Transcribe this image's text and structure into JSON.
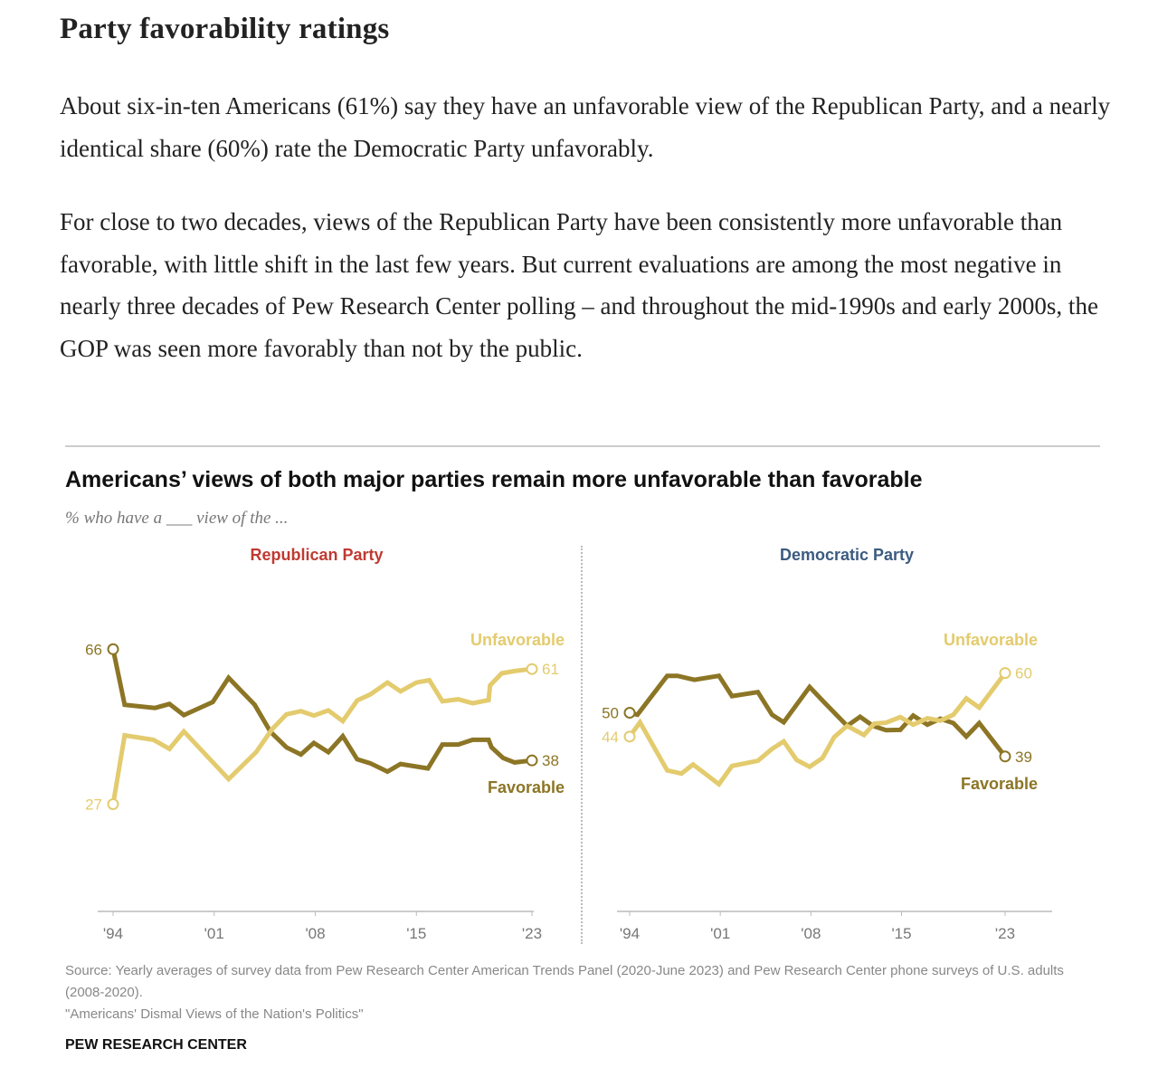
{
  "article": {
    "title": "Party favorability ratings",
    "paragraphs": [
      "About six-in-ten Americans (61%) say they have an unfavorable view of the Republican Party, and a nearly identical share (60%) rate the Democratic Party unfavorably.",
      "For close to two decades, views of the Republican Party have been consistently more unfavorable than favorable, with little shift in the last few years. But current evaluations are among the most negative in nearly three decades of Pew Research Center polling – and throughout the mid-1990s and early 2000s, the GOP was seen more favorably than not by the public."
    ]
  },
  "colors": {
    "favorable": "#8c7525",
    "unfavorable": "#e3cb6e",
    "republican": "#bf3a32",
    "democratic": "#3b5b80"
  },
  "chart_data": [
    {
      "type": "line",
      "title": "Americans’ views of both major parties remain more unfavorable than favorable",
      "subtitle": "% who have a ___ view of the ...",
      "panel": "Republican Party",
      "xlabel": "",
      "ylabel": "",
      "xlim": [
        1994,
        2023
      ],
      "ylim": [
        0,
        66
      ],
      "xticks": [
        1994,
        2001,
        2008,
        2015,
        2023
      ],
      "xtick_labels": [
        "'94",
        "'01",
        "'08",
        "'15",
        "'23"
      ],
      "grid": false,
      "series": [
        {
          "name": "Favorable",
          "start_label": "66",
          "end_label": "38",
          "points": [
            [
              1994,
              66
            ],
            [
              1994.8,
              52
            ],
            [
              1996.9,
              51.2
            ],
            [
              1997.9,
              52.2
            ],
            [
              1998.9,
              49.4
            ],
            [
              2000.9,
              52.7
            ],
            [
              2002,
              58.8
            ],
            [
              2003.8,
              52
            ],
            [
              2004.9,
              45.2
            ],
            [
              2006,
              41.3
            ],
            [
              2007,
              39.5
            ],
            [
              2007.9,
              42.4
            ],
            [
              2008.9,
              40.1
            ],
            [
              2009.9,
              44.1
            ],
            [
              2010.9,
              38.3
            ],
            [
              2011.8,
              37.3
            ],
            [
              2013,
              35.2
            ],
            [
              2013.9,
              37.1
            ],
            [
              2015.8,
              36
            ],
            [
              2016.8,
              42
            ],
            [
              2017.9,
              42
            ],
            [
              2018.9,
              43.2
            ],
            [
              2020,
              43.2
            ],
            [
              2020.2,
              41.3
            ],
            [
              2021,
              38.6
            ],
            [
              2021.8,
              37.5
            ],
            [
              2023,
              38
            ]
          ]
        },
        {
          "name": "Unfavorable",
          "start_label": "27",
          "end_label": "61",
          "points": [
            [
              1994,
              27
            ],
            [
              1994.8,
              44.3
            ],
            [
              1996.8,
              43.2
            ],
            [
              1997.9,
              40.9
            ],
            [
              1998.9,
              45.3
            ],
            [
              2002,
              33.3
            ],
            [
              2003.9,
              40.1
            ],
            [
              2005,
              45.8
            ],
            [
              2006,
              49.6
            ],
            [
              2007,
              50.4
            ],
            [
              2007.9,
              49.3
            ],
            [
              2008.9,
              50.6
            ],
            [
              2009.9,
              47.9
            ],
            [
              2010.9,
              53.1
            ],
            [
              2011.8,
              54.6
            ],
            [
              2013,
              57.6
            ],
            [
              2013.9,
              55.4
            ],
            [
              2015,
              57.6
            ],
            [
              2015.9,
              58.2
            ],
            [
              2016.8,
              52.9
            ],
            [
              2017.9,
              53.4
            ],
            [
              2018.9,
              52.4
            ],
            [
              2020,
              53.2
            ],
            [
              2020.1,
              56.9
            ],
            [
              2020.9,
              59.9
            ],
            [
              2021.8,
              60.5
            ],
            [
              2023,
              61
            ]
          ]
        }
      ]
    },
    {
      "type": "line",
      "panel": "Democratic Party",
      "xlabel": "",
      "ylabel": "",
      "xlim": [
        1994,
        2023
      ],
      "ylim": [
        0,
        66
      ],
      "xticks": [
        1994,
        2001,
        2008,
        2015,
        2023
      ],
      "xtick_labels": [
        "'94",
        "'01",
        "'08",
        "'15",
        "'23"
      ],
      "grid": false,
      "series": [
        {
          "name": "Favorable",
          "start_label": "50",
          "end_label": "39",
          "points": [
            [
              1994,
              50
            ],
            [
              1994.6,
              49.5
            ],
            [
              1996.9,
              59.3
            ],
            [
              1997.7,
              59.3
            ],
            [
              1999,
              58.3
            ],
            [
              2000.9,
              59.3
            ],
            [
              2001.9,
              54.2
            ],
            [
              2003.9,
              55.2
            ],
            [
              2005,
              49.5
            ],
            [
              2005.9,
              47.6
            ],
            [
              2007.9,
              56.5
            ],
            [
              2009,
              52.7
            ],
            [
              2010.8,
              46.7
            ],
            [
              2011.8,
              49
            ],
            [
              2012.8,
              46.7
            ],
            [
              2013.8,
              45.6
            ],
            [
              2014.9,
              45.7
            ],
            [
              2015.9,
              49.3
            ],
            [
              2017,
              47
            ],
            [
              2018,
              48.5
            ],
            [
              2019,
              47.4
            ],
            [
              2020,
              44
            ],
            [
              2021,
              47.4
            ],
            [
              2023,
              39
            ]
          ]
        },
        {
          "name": "Unfavorable",
          "start_label": "44",
          "end_label": "60",
          "points": [
            [
              1994,
              44
            ],
            [
              1994.8,
              47.6
            ],
            [
              1996.9,
              35.5
            ],
            [
              1998,
              34.7
            ],
            [
              1998.9,
              37
            ],
            [
              2000.9,
              32
            ],
            [
              2001.9,
              36.6
            ],
            [
              2003.9,
              37.9
            ],
            [
              2005,
              40.9
            ],
            [
              2005.9,
              42.8
            ],
            [
              2006.9,
              38.1
            ],
            [
              2007.9,
              36.4
            ],
            [
              2008.9,
              38.6
            ],
            [
              2009.8,
              43.9
            ],
            [
              2010.8,
              46.7
            ],
            [
              2012.1,
              44.4
            ],
            [
              2012.9,
              47.3
            ],
            [
              2013.8,
              47.5
            ],
            [
              2014.9,
              48.9
            ],
            [
              2015.9,
              47
            ],
            [
              2017,
              48.6
            ],
            [
              2018,
              48
            ],
            [
              2019,
              49.5
            ],
            [
              2020,
              53.6
            ],
            [
              2021,
              51.3
            ],
            [
              2023,
              60
            ]
          ]
        }
      ]
    }
  ],
  "footer": {
    "source": "Source: Yearly averages of survey data from Pew Research Center American Trends Panel (2020-June 2023) and Pew Research Center phone surveys of U.S. adults (2008-2020).",
    "report_title": "\"Americans' Dismal Views of the Nation's Politics\"",
    "brand": "PEW RESEARCH CENTER"
  }
}
